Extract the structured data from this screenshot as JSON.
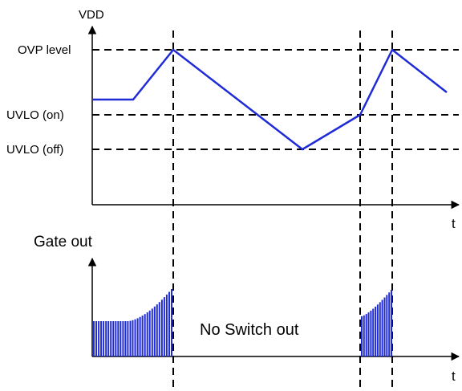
{
  "labels": {
    "vdd_axis": "VDD",
    "ovp_level": "OVP level",
    "uvlo_on": "UVLO (on)",
    "uvlo_off": "UVLO (off)",
    "time_top": "t",
    "gate_out": "Gate out",
    "no_switch": "No Switch out",
    "time_bottom": "t"
  },
  "colors": {
    "signal": "#1f2bd6",
    "axis": "#000000"
  }
}
